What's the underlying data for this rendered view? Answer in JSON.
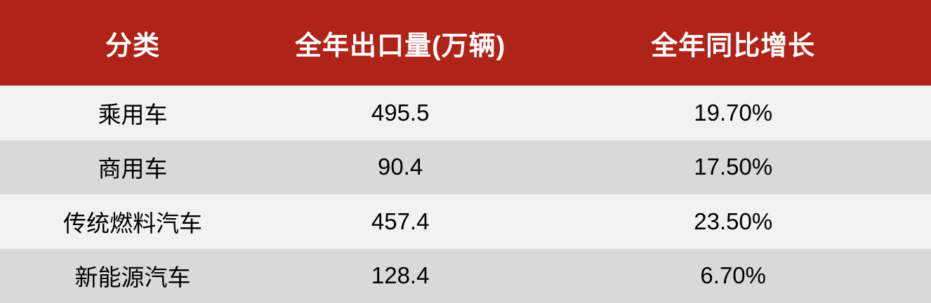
{
  "colors": {
    "header_bg": "#af2318",
    "header_text": "#ffffff",
    "row_light_bg": "#f2f2f2",
    "row_dark_bg": "#d9d9d9",
    "body_text": "#000000"
  },
  "table": {
    "columns": [
      "分类",
      "全年出口量(万辆)",
      "全年同比增长"
    ],
    "rows": [
      [
        "乘用车",
        "495.5",
        "19.70%"
      ],
      [
        "商用车",
        "90.4",
        "17.50%"
      ],
      [
        "传统燃料汽车",
        "457.4",
        "23.50%"
      ],
      [
        "新能源汽车",
        "128.4",
        "6.70%"
      ]
    ]
  },
  "chart_data": {
    "type": "table",
    "title": "",
    "columns": [
      "分类",
      "全年出口量(万辆)",
      "全年同比增长"
    ],
    "rows": [
      {
        "分类": "乘用车",
        "全年出口量(万辆)": 495.5,
        "全年同比增长": "19.70%"
      },
      {
        "分类": "商用车",
        "全年出口量(万辆)": 90.4,
        "全年同比增长": "17.50%"
      },
      {
        "分类": "传统燃料汽车",
        "全年出口量(万辆)": 457.4,
        "全年同比增长": "23.50%"
      },
      {
        "分类": "新能源汽车",
        "全年出口量(万辆)": 128.4,
        "全年同比增长": "6.70%"
      }
    ],
    "layout": {
      "header_style": "red-banner",
      "row_striping": "light/dark gray alternating",
      "alignment": "center"
    }
  }
}
